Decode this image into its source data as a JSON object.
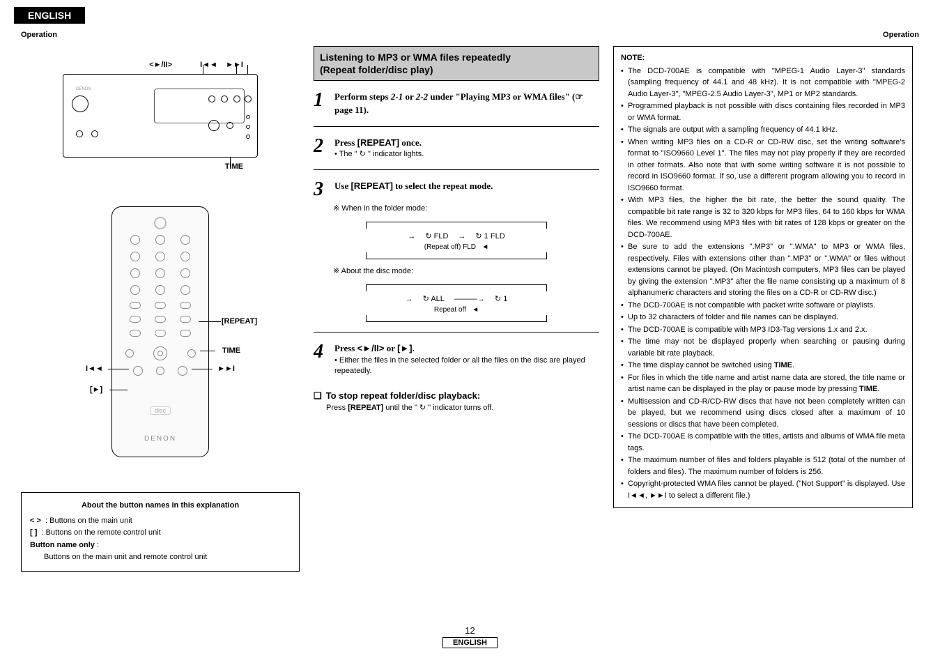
{
  "header": {
    "language": "ENGLISH",
    "operation": "Operation"
  },
  "unit": {
    "top_labels": {
      "play_pause": "<►/II>",
      "prev": "I◄◄",
      "next": "►►I"
    },
    "bottom_label": "TIME"
  },
  "remote": {
    "labels": {
      "repeat": "[REPEAT]",
      "time": "TIME",
      "prev": "I◄◄",
      "next": "►►I",
      "play": "[►]"
    },
    "brand": "DENON"
  },
  "about_box": {
    "title": "About the button names in this explanation",
    "line1_prefix": "<   >",
    "line1_body": ": Buttons on the main unit",
    "line2_prefix": "[     ]",
    "line2_body": ": Buttons on the remote control unit",
    "line3_prefix": "Button name only",
    "line3_body": ":",
    "line4": "Buttons on the main unit and remote control unit"
  },
  "mid": {
    "section_title_l1": "Listening to MP3 or WMA files repeatedly",
    "section_title_l2": "(Repeat folder/disc play)",
    "step1": {
      "num": "1",
      "body_a": "Perform steps ",
      "ref1": "2-1",
      "mid": " or ",
      "ref2": "2-2",
      "body_b": " under \"Playing MP3 or WMA files\" (☞ page 11)."
    },
    "step2": {
      "num": "2",
      "body": "Press ",
      "btn": "[REPEAT]",
      "body2": " once.",
      "sub": "• The \" ↻ \" indicator lights."
    },
    "step3": {
      "num": "3",
      "body": "Use ",
      "btn": "[REPEAT]",
      "body2": " to select the repeat mode.",
      "folder_note": "※ When in the folder mode:",
      "fld": "↻ FLD",
      "one_fld": "↻ 1 FLD",
      "repeat_off_fld": "(Repeat off) FLD",
      "disc_note": "※ About the disc mode:",
      "all": "↻ ALL",
      "one": "↻ 1",
      "repeat_off": "Repeat off"
    },
    "step4": {
      "num": "4",
      "body": "Press ",
      "btn1": "<►/II>",
      "mid": " or ",
      "btn2": "[►]",
      "body2": ".",
      "sub": "• Either the files in the selected folder or all the files on the disc are played repeatedly."
    },
    "stop": {
      "title": "To stop repeat folder/disc playback:",
      "body_a": "Press ",
      "btn": "[REPEAT]",
      "body_b": " until the \" ↻ \" indicator turns off."
    }
  },
  "note": {
    "title": "NOTE:",
    "items": [
      "The DCD-700AE is compatible with \"MPEG-1 Audio Layer-3\" standards (sampling frequency of 44.1 and 48 kHz). It is not compatible with \"MPEG-2 Audio Layer-3\", \"MPEG-2.5 Audio Layer-3\", MP1 or MP2 standards.",
      "Programmed playback is not possible with discs containing files recorded in MP3 or WMA format.",
      "The signals are output with a sampling frequency of 44.1 kHz.",
      "When writing MP3 files on a CD-R or CD-RW disc, set the writing software's format to \"ISO9660 Level 1\". The files may not play properly if they are recorded in other formats. Also note that with some writing software it is not possible to record in ISO9660 format. If so, use a different program allowing you to record in ISO9660 format.",
      "With MP3 files, the higher the bit rate, the better the sound quality. The compatible bit rate range is 32 to 320 kbps for MP3 files, 64 to 160 kbps for WMA files. We recommend using MP3 files with bit rates of 128 kbps or greater on the DCD-700AE.",
      "Be sure to add the extensions \".MP3\" or \".WMA\" to MP3 or WMA files, respectively. Files with extensions other than \".MP3\" or \".WMA\" or files without extensions cannot be played. (On Macintosh computers, MP3 files can be played by giving the extension \".MP3\" after the file name consisting up a maximum of 8 alphanumeric characters and storing the files on a CD-R or CD-RW disc.)",
      "The DCD-700AE is not compatible with packet write software or playlists.",
      "Up to 32 characters of folder and file names can be displayed.",
      "The DCD-700AE is compatible with MP3 ID3-Tag versions 1.x and 2.x.",
      "The time may not be displayed properly when searching or pausing during variable bit rate playback.",
      "The time display cannot be switched using TIME.",
      "For files in which the title name and artist name data are stored, the title name or artist name can be displayed in the play or pause mode by pressing TIME.",
      "Multisession and CD-R/CD-RW discs that have not been completely written can be played, but we recommend using discs closed after a maximum of 10 sessions or discs that have been completed.",
      "The DCD-700AE is compatible with the titles, artists and albums of WMA file meta tags.",
      "The maximum number of files and folders playable is 512 (total of the number of folders and files). The maximum number of folders is 256.",
      "Copyright-protected WMA files cannot be played. (\"Not Support\" is displayed. Use I◄◄, ►►I to select a different file.)"
    ]
  },
  "footer": {
    "page": "12",
    "language": "ENGLISH"
  }
}
